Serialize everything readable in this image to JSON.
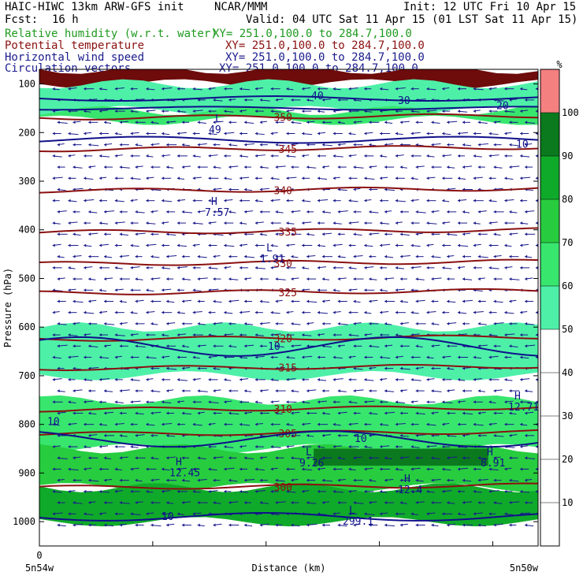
{
  "header": {
    "model": "HAIC-HIWC 13km ARW-GFS init",
    "org": "NCAR/MMM",
    "init": "Init: 12 UTC Fri 10 Apr 15",
    "fcst_label": "Fcst:",
    "fcst_value": "16 h",
    "valid": "Valid: 04 UTC Sat 11 Apr 15 (01 LST Sat 11 Apr 15)",
    "fields": [
      {
        "name": "Relative humidity (w.r.t. water)",
        "xy": "XY= 251.0,100.0 to 284.7,100.0",
        "color": "#1f9a1f"
      },
      {
        "name": "Potential temperature",
        "xy": "XY= 251.0,100.0 to 284.7,100.0",
        "color": "#8b1010"
      },
      {
        "name": "Horizontal wind speed",
        "xy": "XY= 251.0,100.0 to 284.7,100.0",
        "color": "#1a1a8c"
      },
      {
        "name": "Circulation vectors",
        "xy": "XY= 251.0,100.0 to 284.7,100.0",
        "color": "#1a1a8c"
      }
    ]
  },
  "chart_data": {
    "type": "heatmap",
    "description_fields": [
      "Relative humidity (w.r.t. water)",
      "Potential temperature",
      "Horizontal wind speed",
      "Circulation vectors"
    ],
    "ylabel": "Pressure (hPa)",
    "xlabel": "Distance (km)",
    "y_ticks": [
      "100",
      "200",
      "300",
      "400",
      "500",
      "600",
      "700",
      "800",
      "900",
      "1000"
    ],
    "x_tick": "0",
    "x_start_label": "5n54w",
    "x_end_label": "5n50w",
    "colorbar": {
      "unit": "%",
      "levels": [
        "10",
        "20",
        "30",
        "40",
        "50",
        "60",
        "70",
        "80",
        "90",
        "100"
      ],
      "colors": [
        "#ffffff",
        "#ffffff",
        "#ffffff",
        "#ffffff",
        "#ffffff",
        "#4ef0a8",
        "#38e66e",
        "#27cc3f",
        "#10aa2a",
        "#0b7a1e",
        "#f58080"
      ]
    },
    "rh_bands": [
      {
        "p_top": 70,
        "p_bot": 100,
        "rh": 100,
        "color": "#6e0b0b"
      },
      {
        "p_top": 100,
        "p_bot": 155,
        "rh": 60,
        "color": "#4ef0a8"
      },
      {
        "p_top": 155,
        "p_bot": 175,
        "rh": 70,
        "color": "#38e66e"
      },
      {
        "p_top": 600,
        "p_bot": 700,
        "rh": 55,
        "color": "#4ef0a8"
      },
      {
        "p_top": 750,
        "p_bot": 850,
        "rh": 70,
        "color": "#38e66e"
      },
      {
        "p_top": 850,
        "p_bot": 930,
        "rh": 80,
        "color": "#27cc3f"
      },
      {
        "p_top": 930,
        "p_bot": 1000,
        "rh": 90,
        "color": "#10aa2a"
      }
    ],
    "theta_contours": [
      {
        "label": "350",
        "p": 170
      },
      {
        "label": "345",
        "p": 235
      },
      {
        "label": "340",
        "p": 320
      },
      {
        "label": "335",
        "p": 405
      },
      {
        "label": "330",
        "p": 470
      },
      {
        "label": "325",
        "p": 530
      },
      {
        "label": "320",
        "p": 625
      },
      {
        "label": "315",
        "p": 685
      },
      {
        "label": "310",
        "p": 770
      },
      {
        "label": "305",
        "p": 820
      },
      {
        "label": "300",
        "p": 930
      }
    ],
    "wind_labels": [
      "10",
      "10",
      "10",
      "10",
      "10",
      "40",
      "30",
      "20"
    ],
    "extrema": [
      {
        "type": "H",
        "value": "7.57"
      },
      {
        "type": "L",
        "value": "1.91"
      },
      {
        "type": "L",
        "value": "49"
      },
      {
        "type": "H",
        "value": "12.71"
      },
      {
        "type": "H",
        "value": "12.45"
      },
      {
        "type": "L",
        "value": "9.26"
      },
      {
        "type": "H",
        "value": "8.91"
      },
      {
        "type": "H",
        "value": "12.4"
      },
      {
        "type": "L",
        "value": "299.1"
      }
    ]
  }
}
